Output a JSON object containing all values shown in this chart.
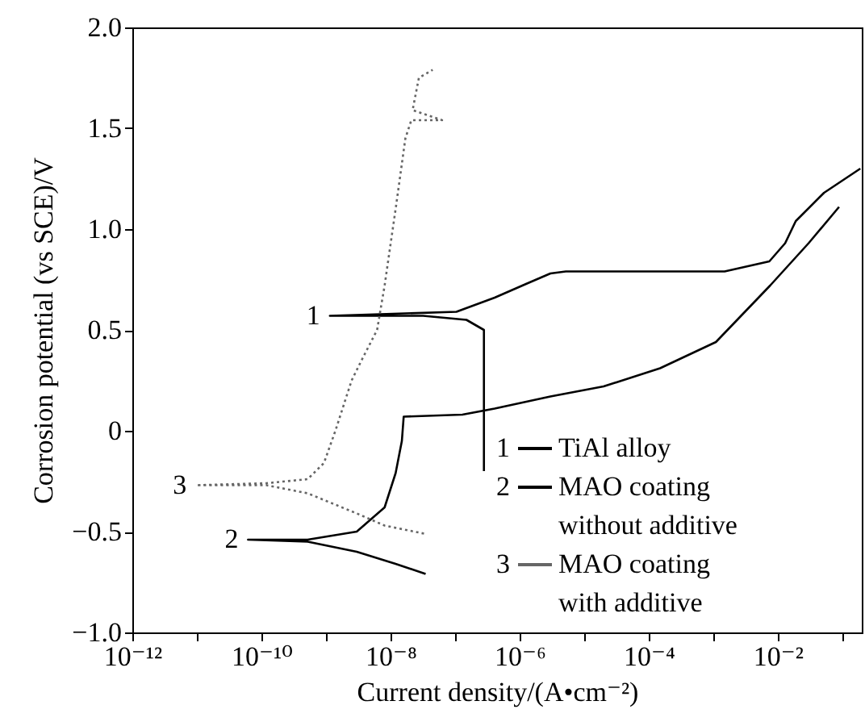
{
  "chart_data": {
    "type": "line",
    "xlabel": "Current density/(A•cm⁻²)",
    "ylabel": "Corrosion potential (vs SCE)/V",
    "log": "x",
    "xlim": [
      1e-12,
      0.2
    ],
    "ylim": [
      -1,
      2
    ],
    "xticks": [
      {
        "value": 1e-12,
        "label": "10⁻¹²"
      },
      {
        "value": 1e-11,
        "label": null
      },
      {
        "value": 1e-10,
        "label": "10⁻¹⁰"
      },
      {
        "value": 1e-09,
        "label": null
      },
      {
        "value": 1e-08,
        "label": "10⁻⁸"
      },
      {
        "value": 1e-07,
        "label": null
      },
      {
        "value": 1e-06,
        "label": "10⁻⁶"
      },
      {
        "value": 1e-05,
        "label": null
      },
      {
        "value": 0.0001,
        "label": "10⁻⁴"
      },
      {
        "value": 0.001,
        "label": null
      },
      {
        "value": 0.01,
        "label": "10⁻²"
      },
      {
        "value": 0.1,
        "label": null
      }
    ],
    "yticks": [
      {
        "value": -1,
        "label": "−1.0"
      },
      {
        "value": -0.5,
        "label": "−0.5"
      },
      0,
      {
        "value": 0.5,
        "label": "0.5"
      },
      {
        "value": 1,
        "label": "1.0"
      },
      {
        "value": 1.5,
        "label": "1.5"
      },
      {
        "value": 2,
        "label": "2.0"
      }
    ],
    "legend": "bottom right",
    "series": [
      {
        "name": "TiAl alloy",
        "color": "#000000",
        "x": [
          2.8e-07,
          2.8e-07,
          2.8e-07,
          1.5e-07,
          3.2e-08,
          1.15e-09,
          1.05e-07,
          4.1e-07,
          1.3e-06,
          3e-06,
          5.2e-06,
          0.0015,
          0.0074,
          0.013,
          0.019,
          0.052,
          0.19
        ],
        "values": [
          -0.2,
          0.2,
          0.5,
          0.55,
          0.57,
          0.57,
          0.59,
          0.66,
          0.73,
          0.78,
          0.79,
          0.79,
          0.84,
          0.93,
          1.04,
          1.18,
          1.3
        ]
      },
      {
        "name": "MAO coating without additive",
        "color": "#000000",
        "x": [
          3.5e-08,
          1.2e-08,
          3e-09,
          5.2e-10,
          6.2e-11,
          5.2e-10,
          3e-09,
          8.1e-09,
          1.2e-08,
          1.5e-08,
          1.6e-08,
          1.3e-07,
          4.1e-07,
          3e-06,
          2e-05,
          0.00015,
          0.0011,
          0.0076,
          0.03,
          0.089
        ],
        "values": [
          -0.71,
          -0.66,
          -0.6,
          -0.55,
          -0.54,
          -0.54,
          -0.5,
          -0.38,
          -0.21,
          -0.05,
          0.07,
          0.08,
          0.11,
          0.17,
          0.22,
          0.31,
          0.44,
          0.72,
          0.93,
          1.11
        ]
      },
      {
        "name": "MAO coating with additive",
        "color": "#666666",
        "line_style": "dotted",
        "x": [
          3.3e-08,
          8.1e-09,
          3e-09,
          5.2e-10,
          1.2e-10,
          9.8e-12,
          1.2e-10,
          5.2e-10,
          9.3e-10,
          1.4e-09,
          2.5e-09,
          3.7e-09,
          6.2e-09,
          8.1e-09,
          1.2e-08,
          1.7e-08,
          2.1e-08,
          6.3e-08,
          2.2e-08,
          2.75e-08,
          4.5e-08
        ],
        "values": [
          -0.51,
          -0.47,
          -0.41,
          -0.31,
          -0.27,
          -0.27,
          -0.26,
          -0.24,
          -0.16,
          0.0,
          0.25,
          0.36,
          0.5,
          0.72,
          1.1,
          1.45,
          1.54,
          1.54,
          1.59,
          1.75,
          1.79
        ]
      }
    ],
    "annotations": [
      {
        "text": "1",
        "x": 1.15e-09,
        "y": 0.57
      },
      {
        "text": "2",
        "x": 6.2e-11,
        "y": -0.54
      },
      {
        "text": "3",
        "x": 9.8e-12,
        "y": -0.27
      }
    ]
  }
}
